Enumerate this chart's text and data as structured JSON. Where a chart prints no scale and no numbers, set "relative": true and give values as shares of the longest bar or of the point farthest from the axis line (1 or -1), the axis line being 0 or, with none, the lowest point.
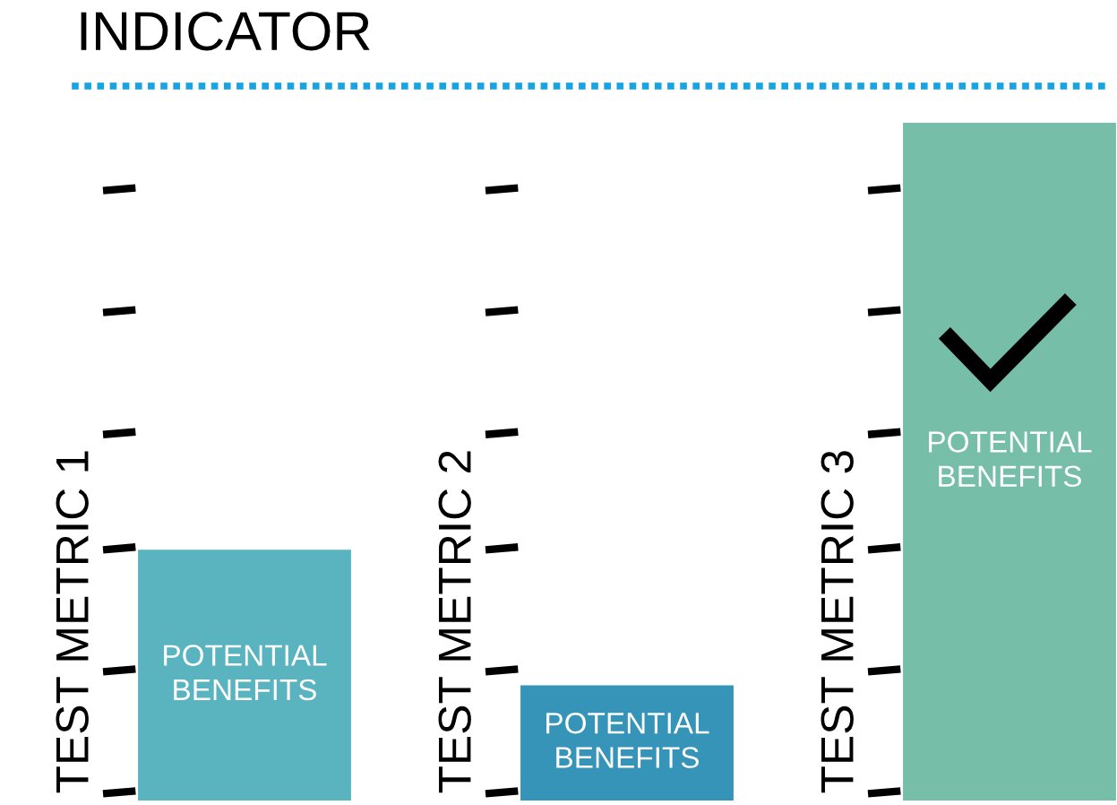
{
  "chart_data": {
    "type": "bar",
    "title": "INDICATOR",
    "relative": true,
    "categories": [
      "TEST METRIC 1",
      "TEST METRIC 2",
      "TEST METRIC 3"
    ],
    "values": [
      0.37,
      0.17,
      1
    ],
    "colors": [
      "#5ab4c0",
      "#3594b8",
      "#76bea8"
    ],
    "annotations": [
      "POTENTIAL\nBENEFITS",
      "POTENTIAL\nBENEFITS",
      "POTENTIAL\nBENEFITS"
    ],
    "legend": false
  }
}
